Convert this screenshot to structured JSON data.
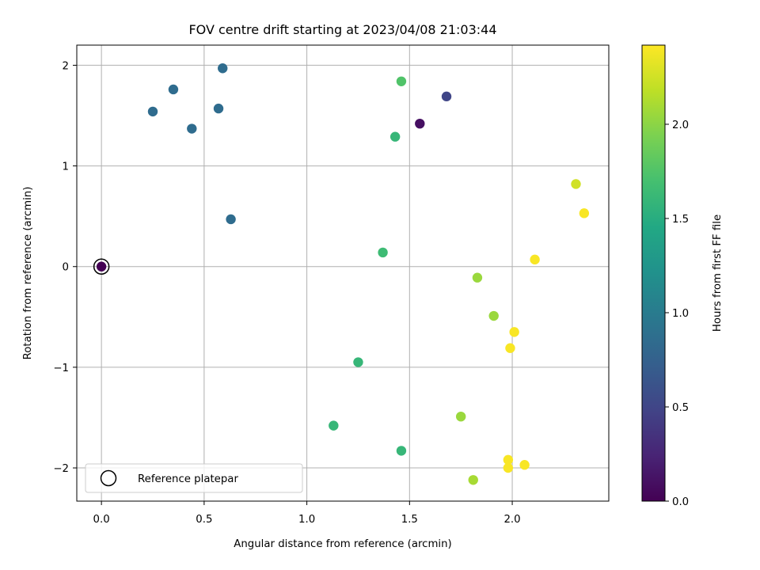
{
  "chart_data": {
    "type": "scatter",
    "title": "FOV centre drift starting at 2023/04/08 21:03:44",
    "xlabel": "Angular distance from reference (arcmin)",
    "ylabel": "Rotation from reference (arcmin)",
    "xlim": [
      -0.12,
      2.47
    ],
    "ylim": [
      -2.33,
      2.2
    ],
    "xticks": [
      0.0,
      0.5,
      1.0,
      1.5,
      2.0
    ],
    "xtick_labels": [
      "0.0",
      "0.5",
      "1.0",
      "1.5",
      "2.0"
    ],
    "yticks": [
      -2,
      -1,
      0,
      1,
      2
    ],
    "ytick_labels": [
      "−2",
      "−1",
      "0",
      "1",
      "2"
    ],
    "grid": true,
    "colormap": "viridis",
    "colorbar": {
      "label": "Hours from first FF file",
      "range": [
        0.0,
        2.42
      ],
      "ticks": [
        0.0,
        0.5,
        1.0,
        1.5,
        2.0
      ],
      "tick_labels": [
        "0.0",
        "0.5",
        "1.0",
        "1.5",
        "2.0"
      ]
    },
    "legend": {
      "placement": "lower-left",
      "entries": [
        "Reference platepar"
      ]
    },
    "reference_point": {
      "x": 0.0,
      "y": 0.0,
      "hours": 0.0
    },
    "points": [
      {
        "x": 1.55,
        "y": 1.42,
        "hours": 0.1
      },
      {
        "x": 1.68,
        "y": 1.69,
        "hours": 0.5
      },
      {
        "x": 0.25,
        "y": 1.54,
        "hours": 0.85
      },
      {
        "x": 0.35,
        "y": 1.76,
        "hours": 0.85
      },
      {
        "x": 0.59,
        "y": 1.97,
        "hours": 0.85
      },
      {
        "x": 0.57,
        "y": 1.57,
        "hours": 0.85
      },
      {
        "x": 0.44,
        "y": 1.37,
        "hours": 0.85
      },
      {
        "x": 0.63,
        "y": 0.47,
        "hours": 0.85
      },
      {
        "x": 1.43,
        "y": 1.29,
        "hours": 1.6
      },
      {
        "x": 1.46,
        "y": 1.84,
        "hours": 1.75
      },
      {
        "x": 1.37,
        "y": 0.14,
        "hours": 1.65
      },
      {
        "x": 1.25,
        "y": -0.95,
        "hours": 1.6
      },
      {
        "x": 1.13,
        "y": -1.58,
        "hours": 1.6
      },
      {
        "x": 1.46,
        "y": -1.83,
        "hours": 1.6
      },
      {
        "x": 1.83,
        "y": -0.11,
        "hours": 2.05
      },
      {
        "x": 1.91,
        "y": -0.49,
        "hours": 2.05
      },
      {
        "x": 1.75,
        "y": -1.49,
        "hours": 2.05
      },
      {
        "x": 1.81,
        "y": -2.12,
        "hours": 2.1
      },
      {
        "x": 2.31,
        "y": 0.82,
        "hours": 2.25
      },
      {
        "x": 2.35,
        "y": 0.53,
        "hours": 2.4
      },
      {
        "x": 2.11,
        "y": 0.07,
        "hours": 2.4
      },
      {
        "x": 2.01,
        "y": -0.65,
        "hours": 2.4
      },
      {
        "x": 1.99,
        "y": -0.81,
        "hours": 2.4
      },
      {
        "x": 1.98,
        "y": -1.92,
        "hours": 2.4
      },
      {
        "x": 1.98,
        "y": -2.0,
        "hours": 2.4
      },
      {
        "x": 2.06,
        "y": -1.97,
        "hours": 2.4
      },
      {
        "x": 0.0,
        "y": 0.0,
        "hours": 0.0
      }
    ]
  }
}
